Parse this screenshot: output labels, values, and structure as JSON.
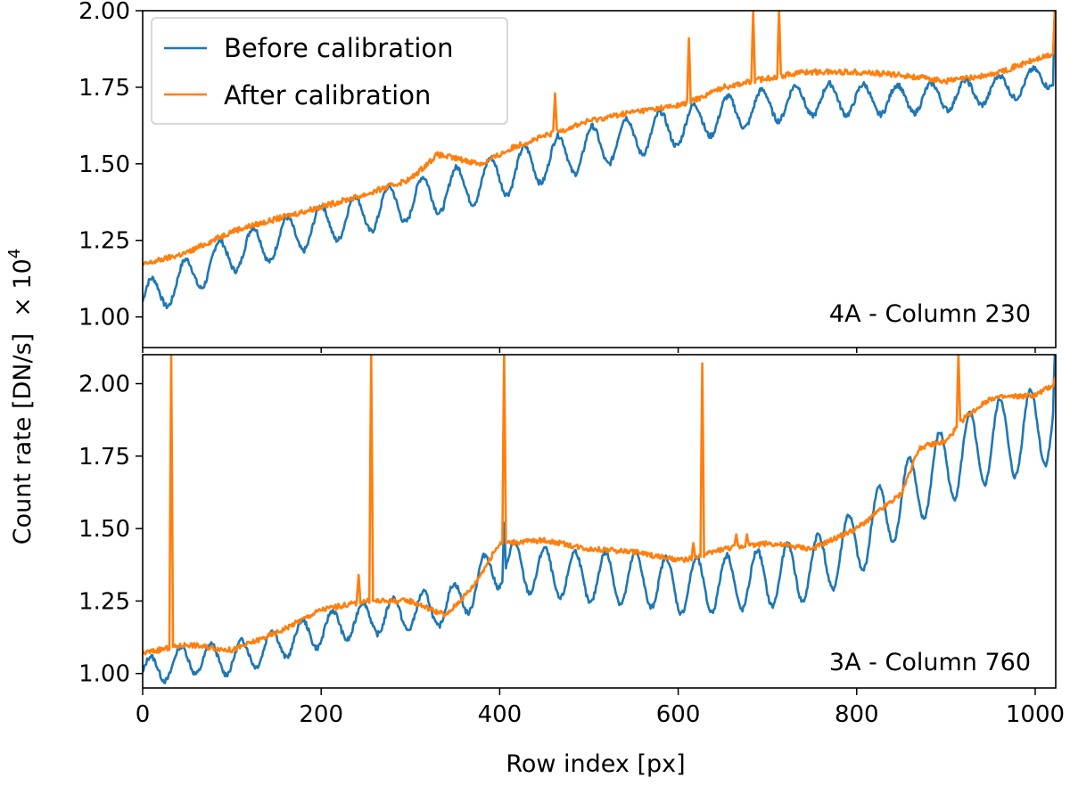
{
  "chart_data": [
    {
      "type": "line",
      "panel_label": "4A - Column 230",
      "xlim": [
        0,
        1023
      ],
      "ylim": [
        0.9,
        2.0
      ],
      "yticks": [
        "1.00",
        "1.25",
        "1.50",
        "1.75",
        "2.00"
      ],
      "legend": {
        "position": "top-left",
        "entries": [
          "Before calibration",
          "After calibration"
        ]
      },
      "series": [
        {
          "name": "Before calibration",
          "color": "#1f77b4",
          "trend": [
            [
              0,
              1.05
            ],
            [
              50,
              1.13
            ],
            [
              100,
              1.21
            ],
            [
              150,
              1.25
            ],
            [
              200,
              1.3
            ],
            [
              250,
              1.34
            ],
            [
              300,
              1.38
            ],
            [
              350,
              1.42
            ],
            [
              400,
              1.46
            ],
            [
              450,
              1.51
            ],
            [
              500,
              1.55
            ],
            [
              550,
              1.59
            ],
            [
              600,
              1.62
            ],
            [
              650,
              1.66
            ],
            [
              700,
              1.69
            ],
            [
              750,
              1.71
            ],
            [
              800,
              1.71
            ],
            [
              850,
              1.71
            ],
            [
              900,
              1.72
            ],
            [
              950,
              1.74
            ],
            [
              1000,
              1.77
            ],
            [
              1023,
              1.8
            ]
          ],
          "oscillation_period": 38,
          "oscillation_amplitude": [
            [
              0,
              0.06
            ],
            [
              500,
              0.07
            ],
            [
              600,
              0.06
            ],
            [
              800,
              0.05
            ],
            [
              1023,
              0.04
            ]
          ],
          "spikes": [
            [
              1022,
              2.0
            ]
          ]
        },
        {
          "name": "After calibration",
          "color": "#ff7f0e",
          "trend": [
            [
              0,
              1.17
            ],
            [
              50,
              1.21
            ],
            [
              100,
              1.28
            ],
            [
              150,
              1.32
            ],
            [
              200,
              1.36
            ],
            [
              250,
              1.4
            ],
            [
              300,
              1.45
            ],
            [
              330,
              1.53
            ],
            [
              380,
              1.5
            ],
            [
              420,
              1.56
            ],
            [
              500,
              1.64
            ],
            [
              550,
              1.67
            ],
            [
              600,
              1.69
            ],
            [
              620,
              1.71
            ],
            [
              650,
              1.75
            ],
            [
              700,
              1.78
            ],
            [
              740,
              1.8
            ],
            [
              800,
              1.8
            ],
            [
              850,
              1.79
            ],
            [
              900,
              1.77
            ],
            [
              950,
              1.79
            ],
            [
              1000,
              1.84
            ],
            [
              1023,
              1.86
            ]
          ],
          "spikes": [
            [
              462,
              1.73
            ],
            [
              612,
              1.91
            ],
            [
              684,
              2.0
            ],
            [
              713,
              2.0
            ],
            [
              1022,
              2.0
            ]
          ]
        }
      ]
    },
    {
      "type": "line",
      "panel_label": "3A - Column 760",
      "xlim": [
        0,
        1023
      ],
      "ylim": [
        0.95,
        2.1
      ],
      "yticks": [
        "1.00",
        "1.25",
        "1.50",
        "1.75",
        "2.00"
      ],
      "series": [
        {
          "name": "Before calibration",
          "color": "#1f77b4",
          "trend": [
            [
              0,
              1.0
            ],
            [
              50,
              1.05
            ],
            [
              100,
              1.05
            ],
            [
              150,
              1.1
            ],
            [
              200,
              1.15
            ],
            [
              250,
              1.19
            ],
            [
              300,
              1.21
            ],
            [
              350,
              1.24
            ],
            [
              400,
              1.38
            ],
            [
              450,
              1.35
            ],
            [
              500,
              1.33
            ],
            [
              550,
              1.33
            ],
            [
              600,
              1.3
            ],
            [
              650,
              1.31
            ],
            [
              700,
              1.33
            ],
            [
              750,
              1.36
            ],
            [
              800,
              1.45
            ],
            [
              850,
              1.6
            ],
            [
              900,
              1.72
            ],
            [
              950,
              1.8
            ],
            [
              1000,
              1.84
            ],
            [
              1023,
              1.9
            ]
          ],
          "oscillation_period": 34,
          "oscillation_amplitude": [
            [
              0,
              0.05
            ],
            [
              300,
              0.06
            ],
            [
              400,
              0.08
            ],
            [
              700,
              0.1
            ],
            [
              900,
              0.13
            ],
            [
              1023,
              0.15
            ]
          ],
          "spikes": [
            [
              405,
              1.52
            ],
            [
              1022,
              2.1
            ]
          ]
        },
        {
          "name": "After calibration",
          "color": "#ff7f0e",
          "trend": [
            [
              0,
              1.07
            ],
            [
              50,
              1.1
            ],
            [
              100,
              1.08
            ],
            [
              150,
              1.14
            ],
            [
              200,
              1.22
            ],
            [
              250,
              1.25
            ],
            [
              300,
              1.25
            ],
            [
              340,
              1.2
            ],
            [
              370,
              1.3
            ],
            [
              400,
              1.45
            ],
            [
              450,
              1.46
            ],
            [
              500,
              1.43
            ],
            [
              550,
              1.42
            ],
            [
              600,
              1.39
            ],
            [
              620,
              1.4
            ],
            [
              650,
              1.43
            ],
            [
              700,
              1.45
            ],
            [
              750,
              1.43
            ],
            [
              800,
              1.5
            ],
            [
              850,
              1.62
            ],
            [
              870,
              1.78
            ],
            [
              900,
              1.8
            ],
            [
              920,
              1.88
            ],
            [
              950,
              1.95
            ],
            [
              1000,
              1.96
            ],
            [
              1023,
              2.0
            ]
          ],
          "spikes": [
            [
              32,
              2.1
            ],
            [
              242,
              1.34
            ],
            [
              256,
              2.1
            ],
            [
              405,
              2.1
            ],
            [
              617,
              1.45
            ],
            [
              627,
              2.07
            ],
            [
              665,
              1.48
            ],
            [
              677,
              1.48
            ],
            [
              914,
              2.1
            ],
            [
              1022,
              2.02
            ]
          ]
        }
      ]
    }
  ],
  "axes": {
    "xlabel": "Row index [px]",
    "ylabel": "Count rate [DN/s]",
    "multiplier": "× 10",
    "multiplier_exp": "4",
    "xticks": [
      "0",
      "200",
      "400",
      "600",
      "800",
      "1000"
    ]
  }
}
